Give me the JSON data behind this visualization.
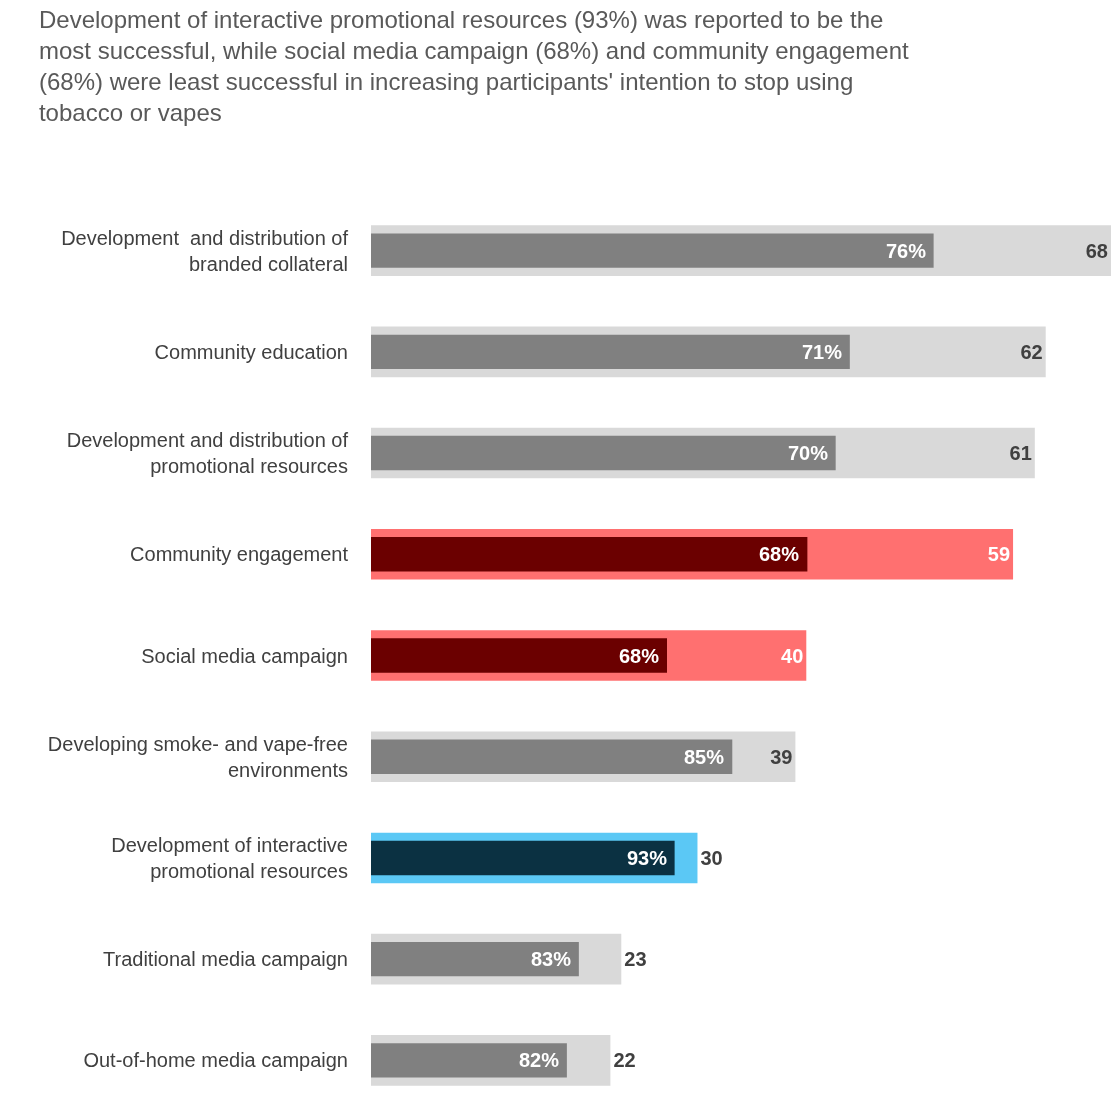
{
  "chart_data": {
    "type": "bar",
    "orientation": "horizontal",
    "title": "Development of interactive promotional resources (93%) was reported to be the most successful, while social media campaign (68%) and community engagement (68%) were least successful in increasing participants' intention to stop using tobacco or vapes",
    "categories": [
      "Development  and distribution of branded collateral",
      "Community education",
      "Development and distribution of promotional resources",
      "Community engagement",
      "Social media campaign",
      "Developing smoke- and vape-free environments",
      "Development of interactive promotional resources",
      "Traditional media campaign",
      "Out-of-home media campaign"
    ],
    "series": [
      {
        "values": [
          68,
          62,
          61,
          59,
          40,
          39,
          30,
          23,
          22
        ],
        "colors": [
          "#d9d9d9",
          "#d9d9d9",
          "#d9d9d9",
          "#ff7070",
          "#ff7070",
          "#d9d9d9",
          "#5bc8f5",
          "#d9d9d9",
          "#d9d9d9"
        ],
        "data_labels": true
      },
      {
        "values": [
          51.7,
          44.0,
          42.7,
          40.1,
          27.2,
          33.2,
          27.9,
          19.1,
          18.0
        ],
        "colors": [
          "#808080",
          "#808080",
          "#808080",
          "#6b0000",
          "#6b0000",
          "#808080",
          "#0b3142",
          "#808080",
          "#808080"
        ]
      }
    ],
    "annotations": [
      {
        "text": "76%",
        "x": 51.7,
        "y": "Development  and distribution of branded collateral"
      },
      {
        "text": "71%",
        "x": 44.0,
        "y": "Community education"
      },
      {
        "text": "70%",
        "x": 42.7,
        "y": "Development and distribution of promotional resources"
      },
      {
        "text": "68%",
        "x": 40.1,
        "y": "Community engagement"
      },
      {
        "text": "68%",
        "x": 27.2,
        "y": "Social media campaign"
      },
      {
        "text": "85%",
        "x": 33.2,
        "y": "Developing smoke- and vape-free environments"
      },
      {
        "text": "93%",
        "x": 27.9,
        "y": "Development of interactive promotional resources"
      },
      {
        "text": "83%",
        "x": 19.1,
        "y": "Traditional media campaign"
      },
      {
        "text": "82%",
        "x": 18.0,
        "y": "Out-of-home media campaign"
      }
    ]
  }
}
